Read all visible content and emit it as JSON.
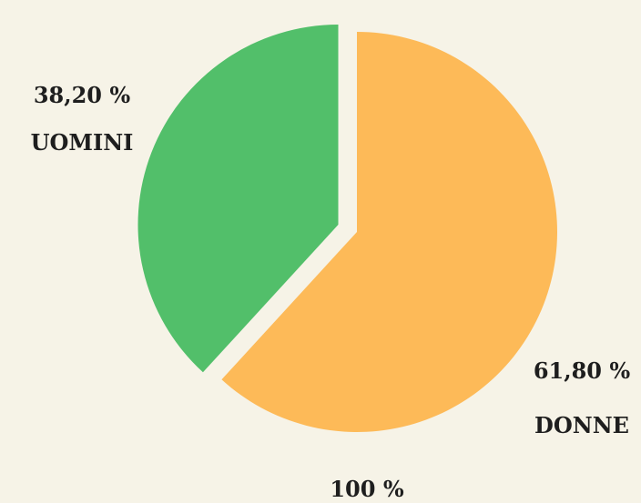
{
  "chart_data": {
    "type": "pie",
    "slices": [
      {
        "key": "uomini",
        "percent_label": "38,20 %",
        "name": "UOMINI",
        "value": 38.2,
        "color": "#52bf6a",
        "exploded": true
      },
      {
        "key": "donne",
        "percent_label": "61,80 %",
        "name": "DONNE",
        "value": 61.8,
        "color": "#fdba58",
        "exploded": false
      }
    ],
    "total_label": "100 %"
  },
  "colors": {
    "background": "#f6f3e7",
    "text": "#1e1e1e"
  }
}
